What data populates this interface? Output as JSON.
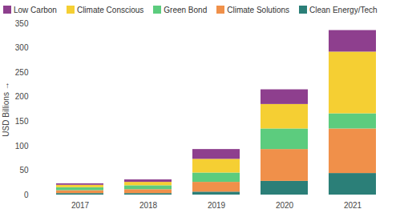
{
  "chart_data": {
    "type": "bar",
    "stacked": true,
    "categories": [
      "2017",
      "2018",
      "2019",
      "2020",
      "2021"
    ],
    "series": [
      {
        "name": "Low Carbon",
        "color": "#8e3f8e",
        "values": [
          3,
          5,
          20,
          30,
          44
        ]
      },
      {
        "name": "Climate Conscious",
        "color": "#f5cf33",
        "values": [
          5,
          7,
          28,
          50,
          126
        ]
      },
      {
        "name": "Green Bond",
        "color": "#5ccc7e",
        "values": [
          6,
          8,
          19,
          42,
          31
        ]
      },
      {
        "name": "Climate Solutions",
        "color": "#f0904a",
        "values": [
          6,
          8,
          20,
          65,
          91
        ]
      },
      {
        "name": "Clean Energy/Tech",
        "color": "#2b7f78",
        "values": [
          3,
          3,
          6,
          28,
          44
        ]
      }
    ],
    "y_label": "USD Billions",
    "ylim": [
      0,
      350
    ],
    "yticks": [
      0,
      50,
      100,
      150,
      200,
      250,
      300,
      350
    ],
    "grid": false,
    "legend": "top-left"
  }
}
